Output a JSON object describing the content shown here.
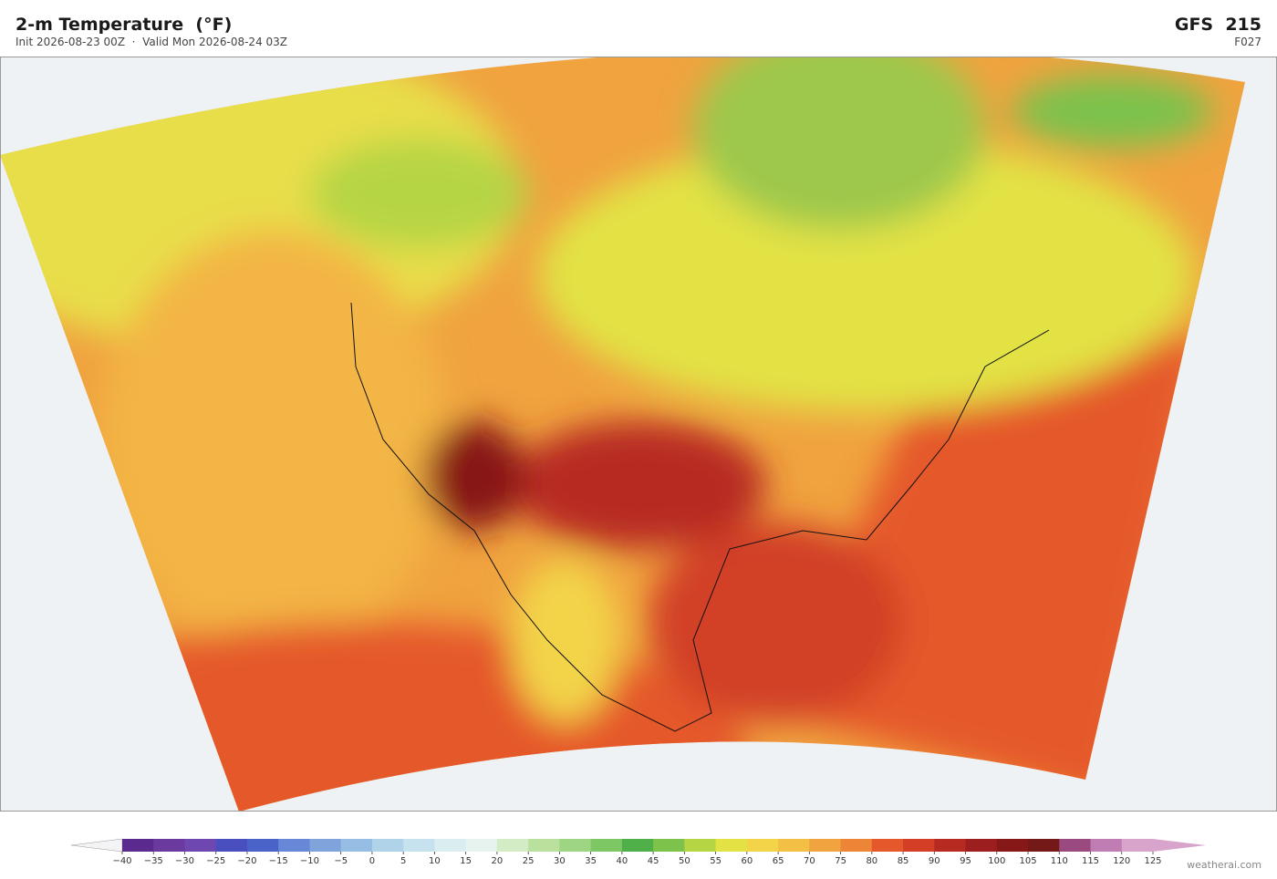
{
  "header": {
    "title": "2-m Temperature  (°F)",
    "subtitle": "Init 2026-08-23 00Z  ·  Valid Mon 2026-08-24 03Z",
    "model": "GFS  215",
    "forecast_hour": "F027"
  },
  "colorbar": {
    "ticks": [
      {
        "value": -40,
        "label": "−40"
      },
      {
        "value": -35,
        "label": "−35"
      },
      {
        "value": -30,
        "label": "−30"
      },
      {
        "value": -25,
        "label": "−25"
      },
      {
        "value": -20,
        "label": "−20"
      },
      {
        "value": -15,
        "label": "−15"
      },
      {
        "value": -10,
        "label": "−10"
      },
      {
        "value": -5,
        "label": "−5"
      },
      0,
      5,
      10,
      15,
      20,
      25,
      30,
      35,
      40,
      45,
      50,
      55,
      60,
      65,
      70,
      75,
      80,
      85,
      90,
      95,
      100,
      105,
      110,
      115,
      120,
      125
    ],
    "colors": [
      "#5b2a8f",
      "#6a3a9e",
      "#6e48b0",
      "#4a4fbf",
      "#4a63c9",
      "#6688d6",
      "#7fa3db",
      "#96bde3",
      "#b0d3ea",
      "#c5e2ee",
      "#daeef2",
      "#e6f3ee",
      "#d4ecc6",
      "#b9e09d",
      "#9ed582",
      "#7dc865",
      "#4fb04a",
      "#7cc24b",
      "#b6d545",
      "#e2e245",
      "#f3d448",
      "#f3bf45",
      "#f0a33f",
      "#ec8535",
      "#e5582b",
      "#d23f26",
      "#b72a22",
      "#9d1e1e",
      "#871818",
      "#741818",
      "#9b4a7f",
      "#c07db4",
      "#d9a4cc"
    ],
    "under_color": "#f4f4f6",
    "over_color": "#d9a4cc"
  },
  "credit": "weatherai.com"
}
